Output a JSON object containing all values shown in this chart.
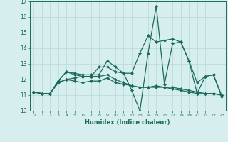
{
  "xlabel": "Humidex (Indice chaleur)",
  "x": [
    0,
    1,
    2,
    3,
    4,
    5,
    6,
    7,
    8,
    9,
    10,
    11,
    12,
    13,
    14,
    15,
    16,
    17,
    18,
    19,
    20,
    21,
    22,
    23
  ],
  "line1": [
    11.2,
    11.1,
    11.1,
    11.9,
    12.5,
    12.4,
    12.3,
    12.3,
    12.3,
    13.2,
    12.8,
    12.4,
    11.3,
    10.0,
    13.7,
    16.7,
    11.7,
    14.3,
    14.4,
    13.2,
    11.1,
    12.2,
    12.3,
    10.9
  ],
  "line2": [
    11.2,
    11.1,
    11.1,
    11.9,
    12.5,
    12.3,
    12.2,
    12.2,
    12.8,
    12.8,
    12.5,
    12.4,
    12.4,
    13.7,
    14.8,
    14.4,
    14.5,
    14.6,
    14.4,
    13.2,
    11.8,
    12.2,
    12.3,
    11.0
  ],
  "line3": [
    11.2,
    11.1,
    11.1,
    11.8,
    12.0,
    11.9,
    11.8,
    11.9,
    11.9,
    12.1,
    11.8,
    11.7,
    11.6,
    11.5,
    11.5,
    11.6,
    11.5,
    11.4,
    11.3,
    11.2,
    11.1,
    11.1,
    11.1,
    11.0
  ],
  "line4": [
    11.2,
    11.1,
    11.1,
    11.8,
    12.0,
    12.1,
    12.2,
    12.2,
    12.2,
    12.3,
    12.0,
    11.8,
    11.6,
    11.5,
    11.5,
    11.5,
    11.5,
    11.5,
    11.4,
    11.3,
    11.2,
    11.1,
    11.1,
    11.0
  ],
  "line_color": "#1a6b5a",
  "bg_color": "#d6eeee",
  "grid_color": "#b8d8d8",
  "ylim": [
    10,
    17
  ],
  "yticks": [
    10,
    11,
    12,
    13,
    14,
    15,
    16,
    17
  ]
}
